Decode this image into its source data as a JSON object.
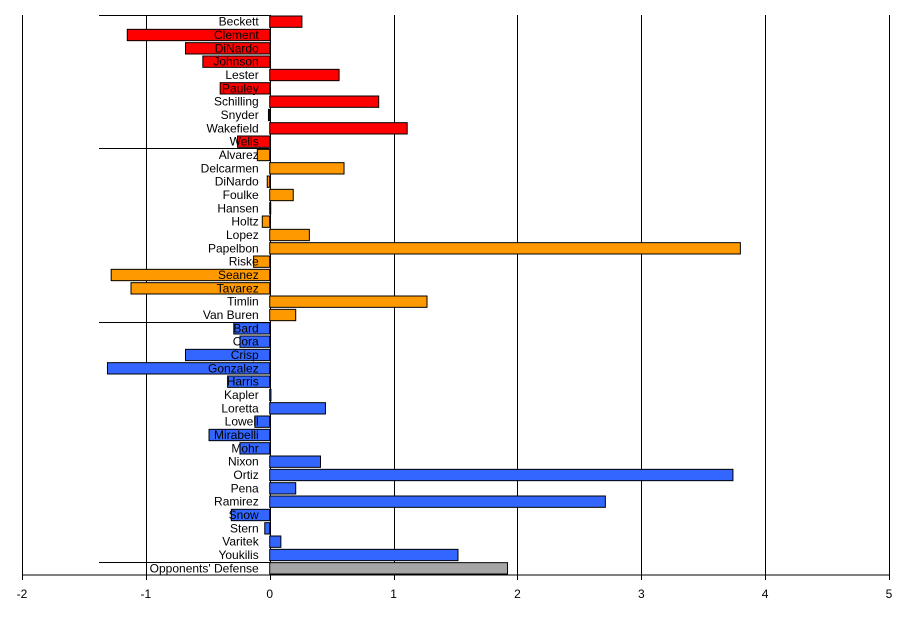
{
  "chart_data": {
    "type": "bar",
    "orientation": "horizontal",
    "title": "",
    "xlabel": "",
    "ylabel": "",
    "xlim": [
      -2,
      5
    ],
    "xticks": [
      "-2",
      "-1",
      "0",
      "1",
      "2",
      "3",
      "4",
      "5"
    ],
    "grid": "vertical",
    "legend": "none",
    "groups": [
      {
        "color": "#ff0000",
        "categories": [
          "Beckett",
          "Clement",
          "DiNardo",
          "Johnson",
          "Lester",
          "Pauley",
          "Schilling",
          "Snyder",
          "Wakefield",
          "Wells"
        ],
        "values": [
          0.26,
          -1.15,
          -0.68,
          -0.54,
          0.56,
          -0.4,
          0.88,
          -0.01,
          1.11,
          -0.26
        ]
      },
      {
        "color": "#ff9900",
        "categories": [
          "Alvarez",
          "Delcarmen",
          "DiNardo",
          "Foulke",
          "Hansen",
          "Holtz",
          "Lopez",
          "Papelbon",
          "Riske",
          "Seanez",
          "Tavarez",
          "Timlin",
          "Van Buren"
        ],
        "values": [
          -0.1,
          0.6,
          -0.02,
          0.19,
          0.0,
          -0.06,
          0.32,
          3.8,
          -0.13,
          -1.28,
          -1.12,
          1.27,
          0.21
        ]
      },
      {
        "color": "#3366ff",
        "categories": [
          "Bard",
          "Cora",
          "Crisp",
          "Gonzalez",
          "Harris",
          "Kapler",
          "Loretta",
          "Lowell",
          "Mirabelli",
          "Mohr",
          "Nixon",
          "Ortiz",
          "Pena",
          "Ramirez",
          "Snow",
          "Stern",
          "Varitek",
          "Youkilis"
        ],
        "values": [
          -0.29,
          -0.24,
          -0.68,
          -1.31,
          -0.34,
          0.01,
          0.45,
          -0.12,
          -0.49,
          -0.24,
          0.41,
          3.74,
          0.21,
          2.71,
          -0.31,
          -0.04,
          0.09,
          1.52
        ]
      },
      {
        "color": "#a6a6a6",
        "categories": [
          "Opponents' Defense"
        ],
        "values": [
          1.92
        ]
      }
    ]
  }
}
